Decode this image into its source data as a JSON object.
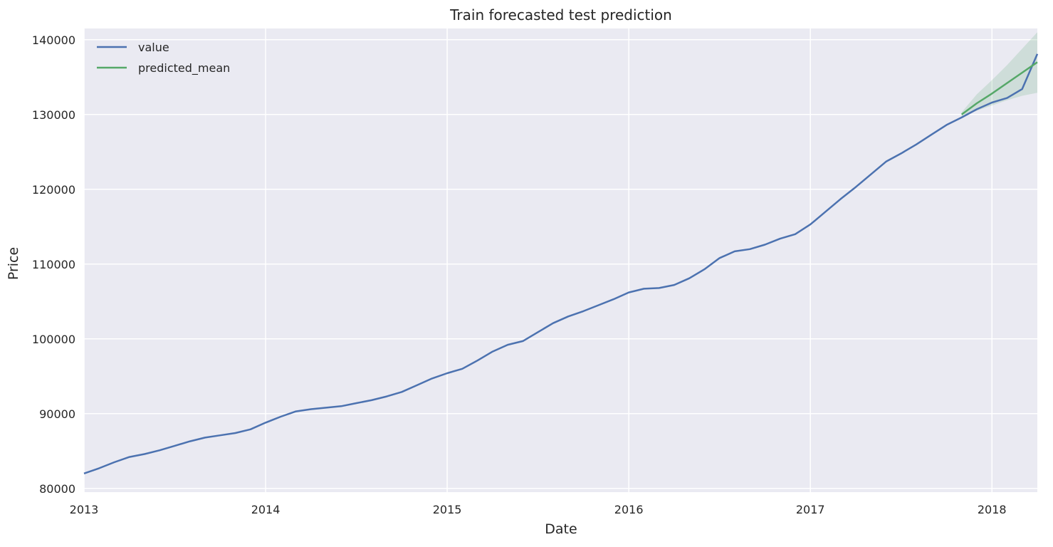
{
  "chart_data": {
    "type": "line",
    "title": "Train forecasted test prediction",
    "xlabel": "Date",
    "ylabel": "Price",
    "xlim": [
      "2013-01",
      "2018-04"
    ],
    "ylim": [
      79500,
      141500
    ],
    "x_ticks": [
      "2013",
      "2014",
      "2015",
      "2016",
      "2017",
      "2018"
    ],
    "y_ticks": [
      80000,
      90000,
      100000,
      110000,
      120000,
      130000,
      140000
    ],
    "grid": true,
    "legend_position": "top-left",
    "colors": {
      "background": "#eaeaf2",
      "grid": "#ffffff",
      "value": "#4c72b0",
      "predicted_mean": "#55a868",
      "confidence": "#55a868"
    },
    "series": [
      {
        "name": "value",
        "x": [
          "2013-01",
          "2013-02",
          "2013-03",
          "2013-04",
          "2013-05",
          "2013-06",
          "2013-07",
          "2013-08",
          "2013-09",
          "2013-10",
          "2013-11",
          "2013-12",
          "2014-01",
          "2014-02",
          "2014-03",
          "2014-04",
          "2014-05",
          "2014-06",
          "2014-07",
          "2014-08",
          "2014-09",
          "2014-10",
          "2014-11",
          "2014-12",
          "2015-01",
          "2015-02",
          "2015-03",
          "2015-04",
          "2015-05",
          "2015-06",
          "2015-07",
          "2015-08",
          "2015-09",
          "2015-10",
          "2015-11",
          "2015-12",
          "2016-01",
          "2016-02",
          "2016-03",
          "2016-04",
          "2016-05",
          "2016-06",
          "2016-07",
          "2016-08",
          "2016-09",
          "2016-10",
          "2016-11",
          "2016-12",
          "2017-01",
          "2017-02",
          "2017-03",
          "2017-04",
          "2017-05",
          "2017-06",
          "2017-07",
          "2017-08",
          "2017-09",
          "2017-10",
          "2017-11",
          "2017-12",
          "2018-01",
          "2018-02",
          "2018-03",
          "2018-04"
        ],
        "values": [
          82000,
          82700,
          83500,
          84200,
          84600,
          85100,
          85700,
          86300,
          86800,
          87100,
          87400,
          87900,
          88800,
          89600,
          90300,
          90600,
          90800,
          91000,
          91400,
          91800,
          92300,
          92900,
          93800,
          94700,
          95400,
          96000,
          97100,
          98300,
          99200,
          99700,
          100900,
          102100,
          103000,
          103700,
          104500,
          105300,
          106200,
          106700,
          106800,
          107200,
          108100,
          109300,
          110800,
          111700,
          112000,
          112600,
          113400,
          114000,
          115300,
          117000,
          118700,
          120300,
          122000,
          123700,
          124800,
          126000,
          127300,
          128600,
          129600,
          130700,
          131600,
          132200,
          133400,
          138100
        ]
      },
      {
        "name": "predicted_mean",
        "x": [
          "2017-11",
          "2017-12",
          "2018-01",
          "2018-02",
          "2018-03",
          "2018-04"
        ],
        "values": [
          130000,
          131500,
          132800,
          134200,
          135600,
          137000
        ],
        "lower": [
          129700,
          130500,
          131200,
          131900,
          132500,
          132900
        ],
        "upper": [
          130300,
          132700,
          134600,
          136600,
          138800,
          141000
        ]
      }
    ]
  }
}
